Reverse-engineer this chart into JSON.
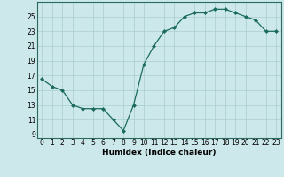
{
  "x": [
    0,
    1,
    2,
    3,
    4,
    5,
    6,
    7,
    8,
    9,
    10,
    11,
    12,
    13,
    14,
    15,
    16,
    17,
    18,
    19,
    20,
    21,
    22,
    23
  ],
  "y": [
    16.5,
    15.5,
    15.0,
    13.0,
    12.5,
    12.5,
    12.5,
    11.0,
    9.5,
    13.0,
    18.5,
    21.0,
    23.0,
    23.5,
    25.0,
    25.5,
    25.5,
    26.0,
    26.0,
    25.5,
    25.0,
    24.5,
    23.0,
    23.0
  ],
  "line_color": "#1a6b5a",
  "marker": "D",
  "marker_size": 2.0,
  "bg_color": "#cde8ea",
  "grid_color": "#aacdd0",
  "xlabel": "Humidex (Indice chaleur)",
  "xlim": [
    -0.5,
    23.5
  ],
  "ylim": [
    8.5,
    27.0
  ],
  "yticks": [
    9,
    11,
    13,
    15,
    17,
    19,
    21,
    23,
    25
  ],
  "xticks": [
    0,
    1,
    2,
    3,
    4,
    5,
    6,
    7,
    8,
    9,
    10,
    11,
    12,
    13,
    14,
    15,
    16,
    17,
    18,
    19,
    20,
    21,
    22,
    23
  ],
  "tick_labelsize": 5.5,
  "xlabel_fontsize": 6.5,
  "linewidth": 0.9
}
